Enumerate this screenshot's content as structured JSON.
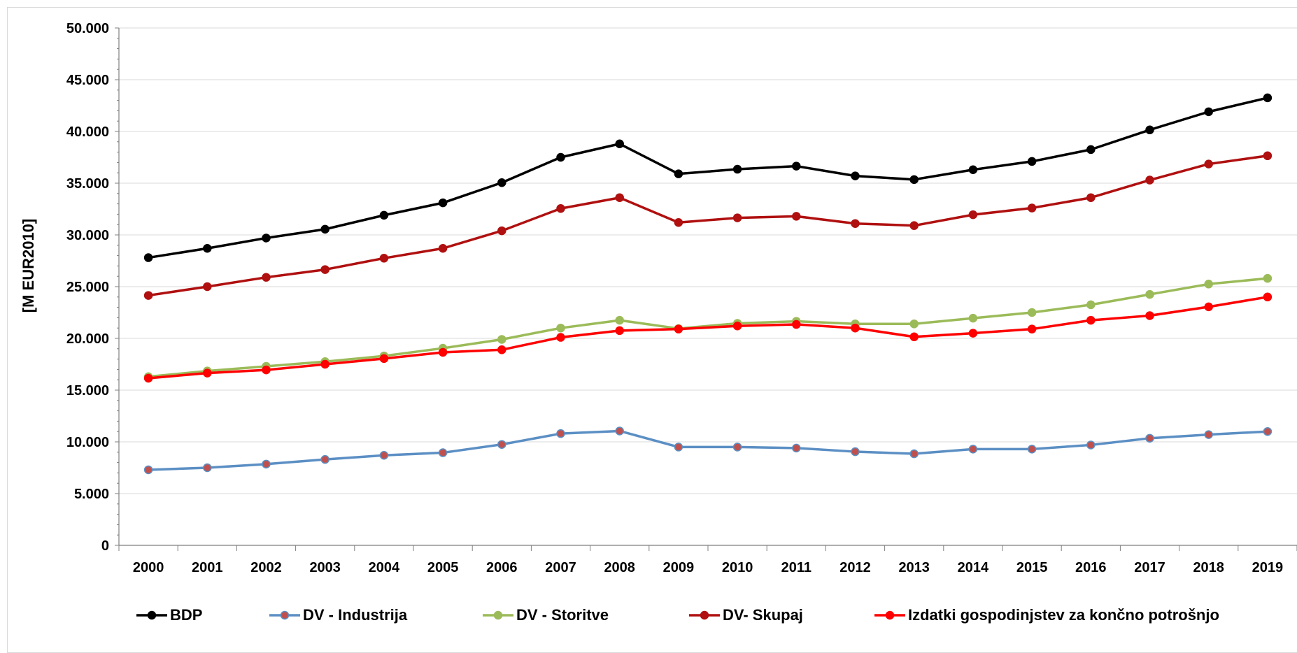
{
  "chart_data": {
    "type": "line",
    "title": "",
    "xlabel": "",
    "ylabel": "[M EUR2010]",
    "ylim": [
      0,
      50000
    ],
    "yticks": [
      0,
      5000,
      10000,
      15000,
      20000,
      25000,
      30000,
      35000,
      40000,
      45000,
      50000
    ],
    "ytick_labels": [
      "0",
      "5.000",
      "10.000",
      "15.000",
      "20.000",
      "25.000",
      "30.000",
      "35.000",
      "40.000",
      "45.000",
      "50.000"
    ],
    "grid": "horizontal",
    "legend_position": "bottom",
    "categories": [
      "2000",
      "2001",
      "2002",
      "2003",
      "2004",
      "2005",
      "2006",
      "2007",
      "2008",
      "2009",
      "2010",
      "2011",
      "2012",
      "2013",
      "2014",
      "2015",
      "2016",
      "2017",
      "2018",
      "2019"
    ],
    "series": [
      {
        "name": "BDP",
        "color": "#000000",
        "marker_fill": "#000000",
        "values": [
          27800,
          28700,
          29700,
          30550,
          31900,
          33100,
          35050,
          37500,
          38800,
          35900,
          36350,
          36650,
          35700,
          35350,
          36300,
          37100,
          38250,
          40150,
          41900,
          43250
        ]
      },
      {
        "name": "DV - Industrija",
        "color": "#5b8fc4",
        "marker_fill": "#c0504d",
        "values": [
          7300,
          7500,
          7850,
          8300,
          8700,
          8950,
          9750,
          10800,
          11050,
          9500,
          9500,
          9400,
          9050,
          8850,
          9300,
          9300,
          9700,
          10350,
          10700,
          11000
        ]
      },
      {
        "name": "DV - Storitve",
        "color": "#9bbb59",
        "marker_fill": "#9bbb59",
        "values": [
          16300,
          16850,
          17300,
          17750,
          18300,
          19050,
          19900,
          21000,
          21750,
          20950,
          21450,
          21650,
          21400,
          21400,
          21950,
          22500,
          23250,
          24250,
          25250,
          25800
        ]
      },
      {
        "name": "DV- Skupaj",
        "color": "#b01010",
        "marker_fill": "#b01010",
        "values": [
          24150,
          25000,
          25900,
          26650,
          27750,
          28700,
          30400,
          32550,
          33600,
          31200,
          31650,
          31800,
          31100,
          30900,
          31950,
          32600,
          33600,
          35300,
          36850,
          37650
        ]
      },
      {
        "name": "Izdatki gospodinjstev za končno potrošnjo",
        "color": "#ff0000",
        "marker_fill": "#ff0000",
        "values": [
          16150,
          16650,
          16950,
          17500,
          18050,
          18650,
          18900,
          20100,
          20750,
          20900,
          21200,
          21350,
          21000,
          20150,
          20500,
          20900,
          21750,
          22200,
          23050,
          24000
        ]
      }
    ]
  }
}
